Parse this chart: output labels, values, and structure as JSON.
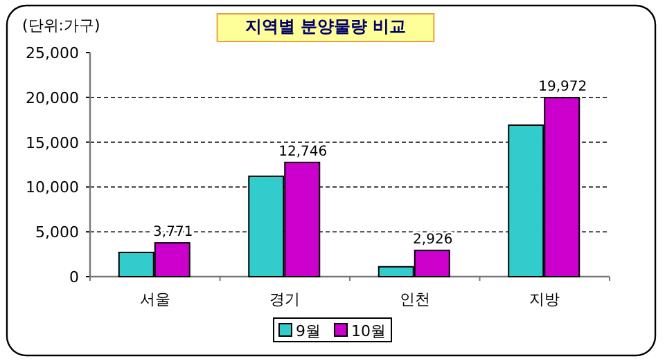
{
  "chart_data": {
    "type": "bar",
    "title": "지역별   분양물량 비교",
    "annotations": [
      "(단위:가구)"
    ],
    "categories": [
      "서울",
      "경기",
      "인천",
      "지방"
    ],
    "series": [
      {
        "name": "9월",
        "color": "#33cccc",
        "values": [
          2700,
          11200,
          1100,
          16900
        ],
        "value_labels": [
          null,
          null,
          null,
          null
        ]
      },
      {
        "name": "10월",
        "color": "#cc00cc",
        "values": [
          3771,
          12746,
          2926,
          19972
        ],
        "value_labels": [
          "3,771",
          "12,746",
          "2,926",
          "19,972"
        ]
      }
    ],
    "ylim": [
      0,
      25000
    ],
    "yticks": [
      0,
      {
        "value": 5000,
        "label": "5,000"
      },
      {
        "value": 10000,
        "label": "10,000"
      },
      {
        "value": 15000,
        "label": "15,000"
      },
      {
        "value": 20000,
        "label": "20,000"
      },
      {
        "value": 25000,
        "label": "25,000"
      }
    ],
    "grid": "y",
    "legend": "bottom"
  }
}
